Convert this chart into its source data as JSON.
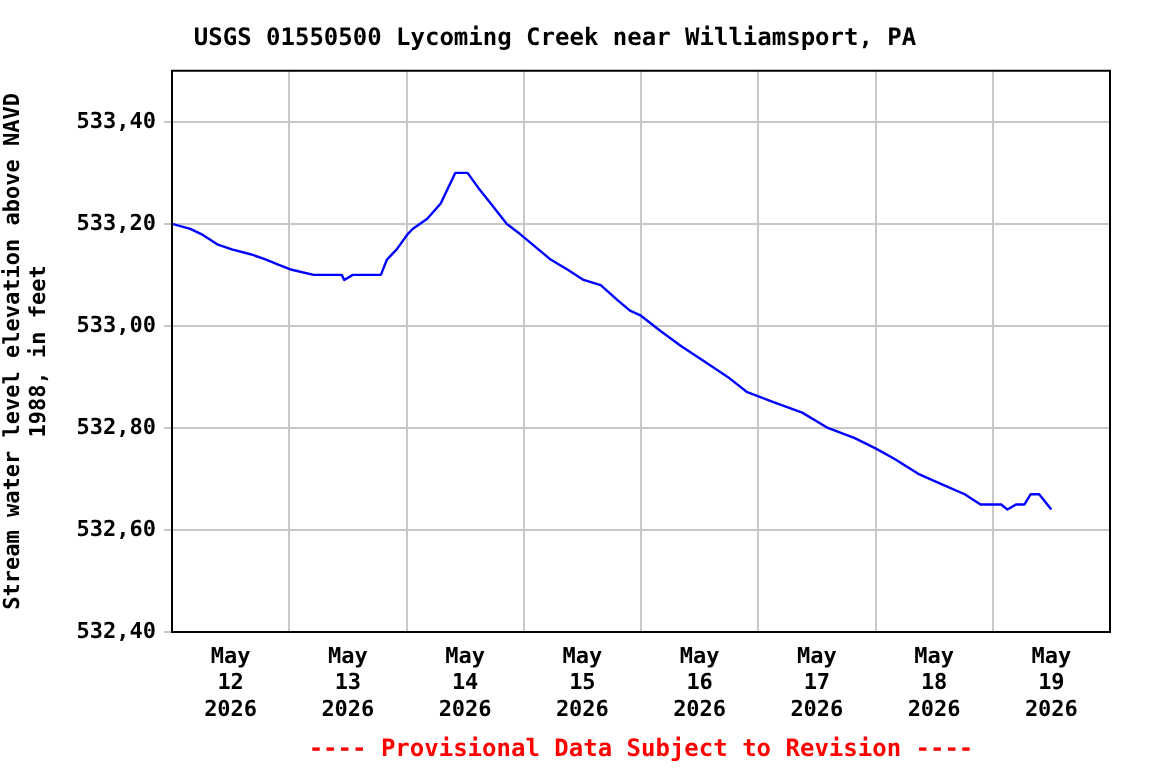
{
  "chart_data": {
    "type": "line",
    "title": "USGS 01550500 Lycoming Creek near Williamsport, PA",
    "ylabel": "Stream water level elevation above NAVD 1988, in feet",
    "x": [
      "2026-05-12T00:00",
      "2026-05-12T03:45",
      "2026-05-12T06:00",
      "2026-05-12T09:15",
      "2026-05-12T12:15",
      "2026-05-12T16:15",
      "2026-05-12T19:15",
      "2026-05-12T21:45",
      "2026-05-13T00:30",
      "2026-05-13T05:00",
      "2026-05-13T10:45",
      "2026-05-13T11:15",
      "2026-05-13T13:00",
      "2026-05-13T18:45",
      "2026-05-13T20:00",
      "2026-05-13T22:00",
      "2026-05-14T00:15",
      "2026-05-14T01:15",
      "2026-05-14T04:15",
      "2026-05-14T07:00",
      "2026-05-14T09:00",
      "2026-05-14T10:00",
      "2026-05-14T12:30",
      "2026-05-14T14:45",
      "2026-05-14T17:15",
      "2026-05-14T20:30",
      "2026-05-14T23:15",
      "2026-05-15T03:00",
      "2026-05-15T05:30",
      "2026-05-15T09:00",
      "2026-05-15T12:15",
      "2026-05-15T15:45",
      "2026-05-15T19:15",
      "2026-05-15T21:45",
      "2026-05-16T00:00",
      "2026-05-16T04:00",
      "2026-05-16T08:15",
      "2026-05-16T13:00",
      "2026-05-16T17:45",
      "2026-05-16T21:45",
      "2026-05-17T03:15",
      "2026-05-17T09:00",
      "2026-05-17T14:15",
      "2026-05-17T19:45",
      "2026-05-18T00:00",
      "2026-05-18T03:45",
      "2026-05-18T08:45",
      "2026-05-18T13:30",
      "2026-05-18T18:15",
      "2026-05-18T21:30",
      "2026-05-19T01:45",
      "2026-05-19T03:00",
      "2026-05-19T04:45",
      "2026-05-19T06:30",
      "2026-05-19T07:45",
      "2026-05-19T09:30",
      "2026-05-19T12:00"
    ],
    "series": [
      {
        "color": "#0000ff",
        "values": [
          533.2,
          533.19,
          533.18,
          533.16,
          533.15,
          533.14,
          533.13,
          533.12,
          533.11,
          533.1,
          533.1,
          533.09,
          533.1,
          533.1,
          533.13,
          533.15,
          533.18,
          533.19,
          533.21,
          533.24,
          533.28,
          533.3,
          533.3,
          533.27,
          533.24,
          533.2,
          533.18,
          533.15,
          533.13,
          533.11,
          533.09,
          533.08,
          533.05,
          533.03,
          533.02,
          532.99,
          532.96,
          532.93,
          532.9,
          532.87,
          532.85,
          532.83,
          532.8,
          532.78,
          532.76,
          532.74,
          532.71,
          532.69,
          532.67,
          532.65,
          532.65,
          532.64,
          532.65,
          532.65,
          532.67,
          532.67,
          532.64
        ]
      }
    ],
    "xlim": [
      "2026-05-12T00:00",
      "2026-05-20T00:00"
    ],
    "xticks": [
      {
        "value": "2026-05-12T00:00",
        "label": null
      },
      {
        "value": "2026-05-12T12:00",
        "label": "May 12 2026"
      },
      {
        "value": "2026-05-13T00:00",
        "label": null
      },
      {
        "value": "2026-05-13T12:00",
        "label": "May 13 2026"
      },
      {
        "value": "2026-05-14T00:00",
        "label": null
      },
      {
        "value": "2026-05-14T12:00",
        "label": "May 14 2026"
      },
      {
        "value": "2026-05-15T00:00",
        "label": null
      },
      {
        "value": "2026-05-15T12:00",
        "label": "May 15 2026"
      },
      {
        "value": "2026-05-16T00:00",
        "label": null
      },
      {
        "value": "2026-05-16T12:00",
        "label": "May 16 2026"
      },
      {
        "value": "2026-05-17T00:00",
        "label": null
      },
      {
        "value": "2026-05-17T12:00",
        "label": "May 17 2026"
      },
      {
        "value": "2026-05-18T00:00",
        "label": null
      },
      {
        "value": "2026-05-18T12:00",
        "label": "May 18 2026"
      },
      {
        "value": "2026-05-19T00:00",
        "label": null
      },
      {
        "value": "2026-05-19T12:00",
        "label": "May 19 2026"
      },
      {
        "value": "2026-05-20T00:00",
        "label": null
      }
    ],
    "ylim": [
      532.4,
      533.5
    ],
    "yticks": [
      {
        "value": 532.4,
        "label": "532,40"
      },
      {
        "value": 532.6,
        "label": "532,60"
      },
      {
        "value": 532.8,
        "label": "532,80"
      },
      {
        "value": 533.0,
        "label": "533,00"
      },
      {
        "value": 533.2,
        "label": "533,20"
      },
      {
        "value": 533.4,
        "label": "533,40"
      }
    ],
    "grid": true,
    "marker": "none",
    "line_style": "solid",
    "annotations": [
      "---- Provisional Data Subject to Revision ----"
    ]
  }
}
